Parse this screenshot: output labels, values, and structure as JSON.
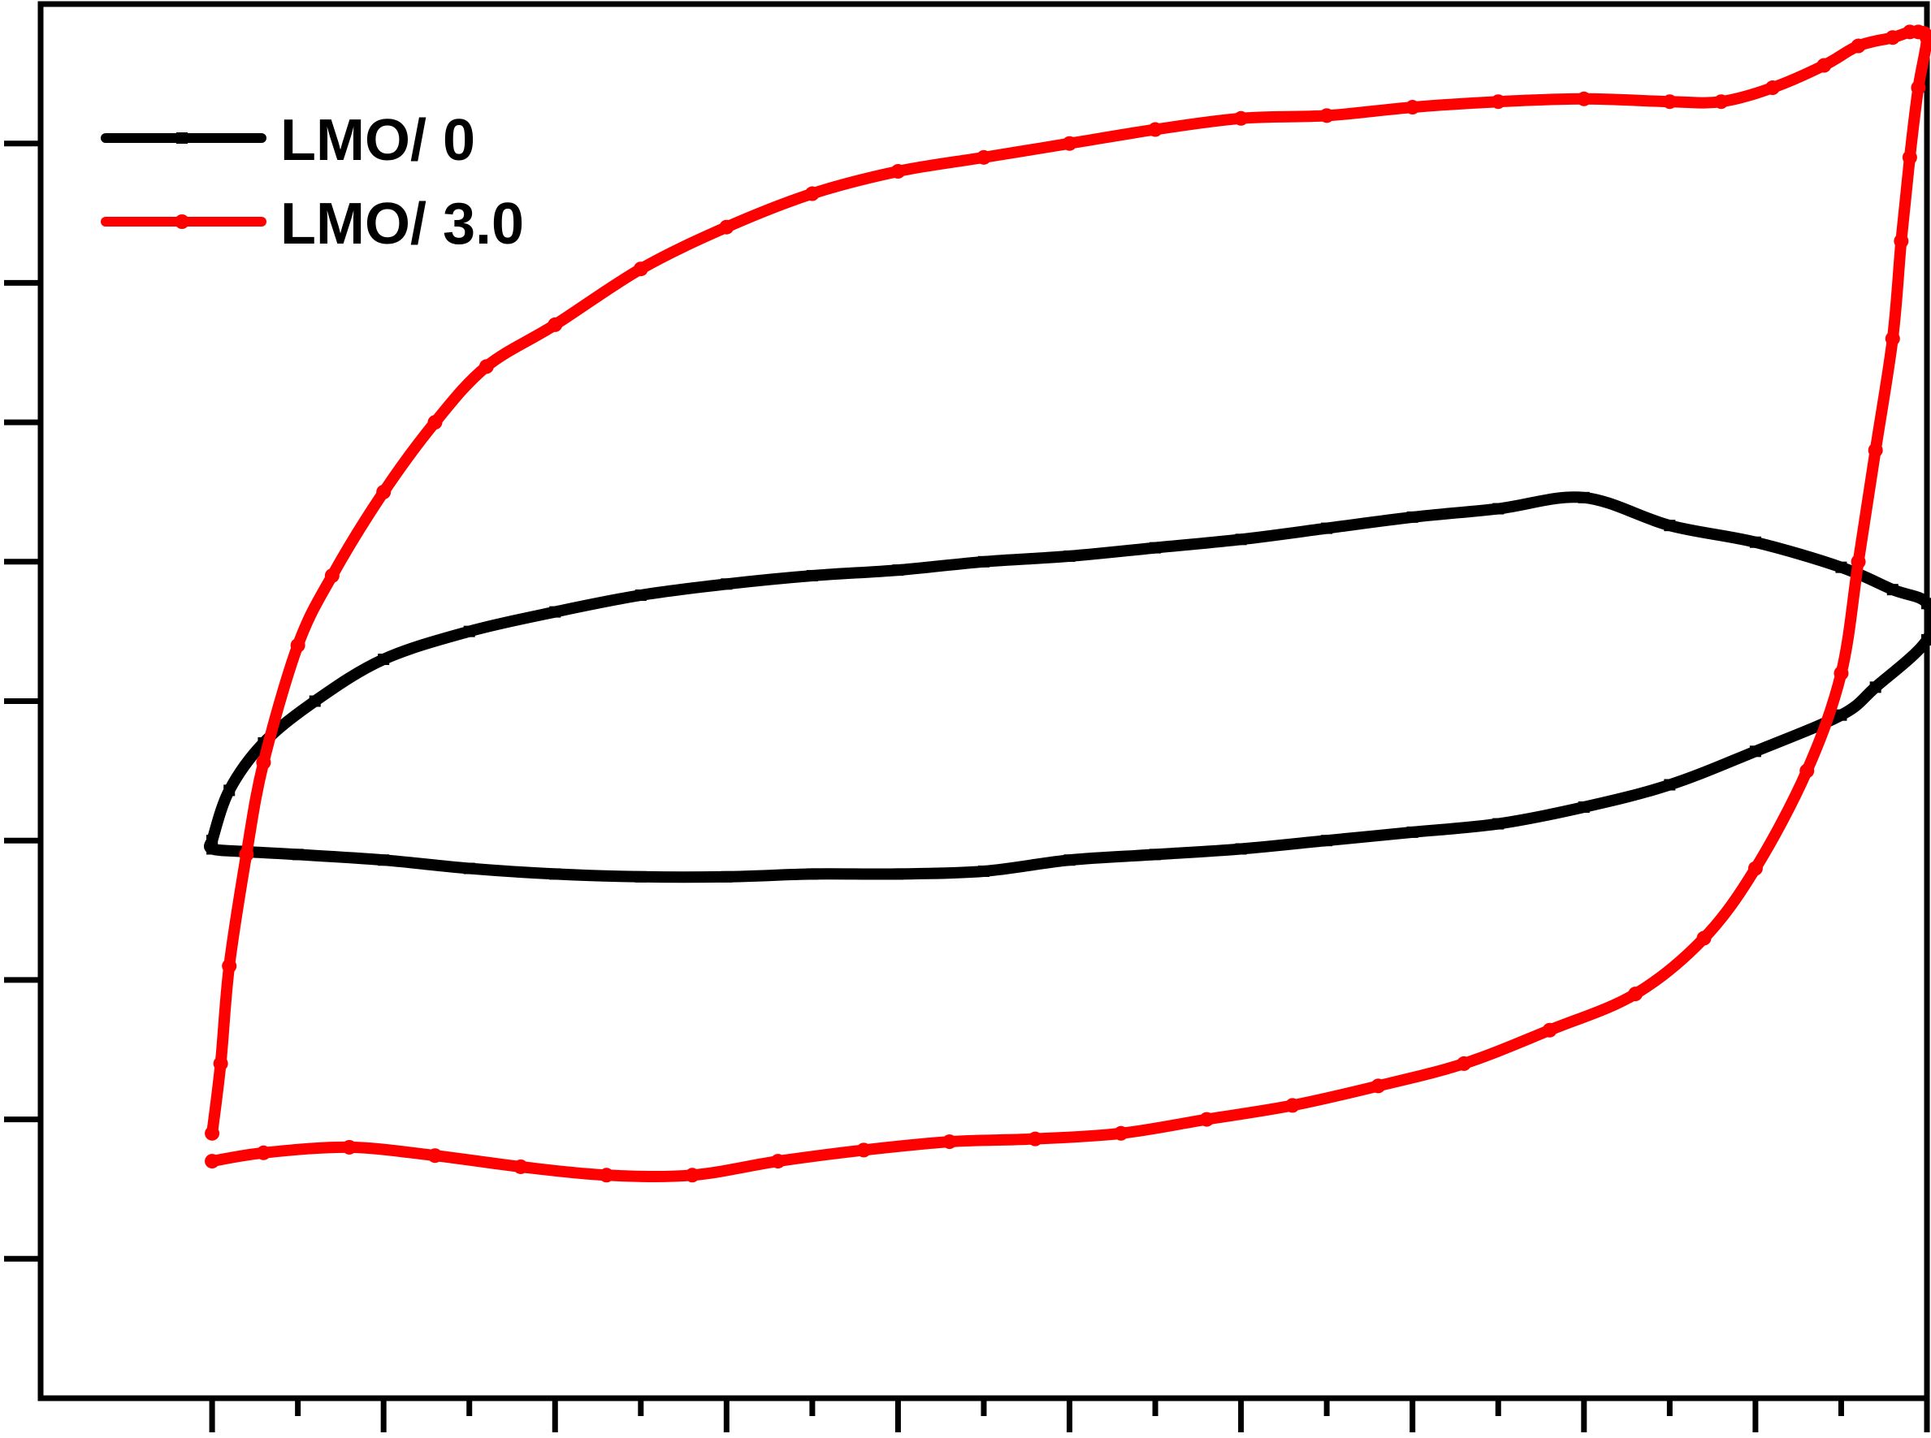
{
  "chart_data": {
    "type": "line",
    "title": "",
    "xlabel": "",
    "ylabel": "",
    "xlim": [
      -0.1,
      1.0
    ],
    "ylim": [
      -5.0,
      0.0
    ],
    "grid": false,
    "legend_position": "top-left",
    "x_ticks": [
      0.0,
      0.1,
      0.2,
      0.3,
      0.4,
      0.5,
      0.6,
      0.7,
      0.8,
      0.9,
      1.0
    ],
    "y_ticks": [
      -0.5,
      -1.0,
      -1.5,
      -2.0,
      -2.5,
      -3.0,
      -3.5,
      -4.0,
      -4.5
    ],
    "series": [
      {
        "name": "LMO/ 0",
        "color": "#000000",
        "marker": "square",
        "x": [
          0.0,
          0.01,
          0.03,
          0.06,
          0.1,
          0.15,
          0.2,
          0.25,
          0.3,
          0.35,
          0.4,
          0.45,
          0.5,
          0.55,
          0.6,
          0.65,
          0.7,
          0.75,
          0.8,
          0.85,
          0.9,
          0.95,
          0.98,
          1.0,
          1.0,
          0.97,
          0.95,
          0.9,
          0.85,
          0.8,
          0.75,
          0.7,
          0.65,
          0.6,
          0.55,
          0.5,
          0.45,
          0.4,
          0.35,
          0.3,
          0.25,
          0.2,
          0.15,
          0.1,
          0.05,
          0.02,
          0.0,
          0.0
        ],
        "y": [
          -3.0,
          -2.82,
          -2.65,
          -2.5,
          -2.35,
          -2.25,
          -2.18,
          -2.12,
          -2.08,
          -2.05,
          -2.03,
          -2.0,
          -1.98,
          -1.95,
          -1.92,
          -1.88,
          -1.84,
          -1.81,
          -1.77,
          -1.87,
          -1.93,
          -2.02,
          -2.1,
          -2.15,
          -2.28,
          -2.45,
          -2.55,
          -2.68,
          -2.8,
          -2.88,
          -2.94,
          -2.97,
          -3.0,
          -3.03,
          -3.05,
          -3.07,
          -3.11,
          -3.12,
          -3.12,
          -3.13,
          -3.13,
          -3.12,
          -3.1,
          -3.07,
          -3.05,
          -3.04,
          -3.03,
          -3.0
        ]
      },
      {
        "name": "LMO/ 3.0",
        "color": "#ff0000",
        "marker": "circle",
        "x": [
          0.0,
          0.005,
          0.01,
          0.02,
          0.03,
          0.05,
          0.07,
          0.1,
          0.13,
          0.16,
          0.2,
          0.25,
          0.3,
          0.35,
          0.4,
          0.45,
          0.5,
          0.55,
          0.6,
          0.65,
          0.7,
          0.75,
          0.8,
          0.85,
          0.88,
          0.91,
          0.94,
          0.96,
          0.98,
          0.99,
          0.995,
          1.0,
          0.995,
          0.99,
          0.985,
          0.98,
          0.97,
          0.96,
          0.95,
          0.93,
          0.9,
          0.87,
          0.83,
          0.78,
          0.73,
          0.68,
          0.63,
          0.58,
          0.53,
          0.48,
          0.43,
          0.38,
          0.33,
          0.28,
          0.23,
          0.18,
          0.13,
          0.08,
          0.03,
          0.0
        ],
        "y": [
          -4.05,
          -3.8,
          -3.45,
          -3.05,
          -2.72,
          -2.3,
          -2.05,
          -1.75,
          -1.5,
          -1.3,
          -1.15,
          -0.95,
          -0.8,
          -0.68,
          -0.6,
          -0.55,
          -0.5,
          -0.45,
          -0.41,
          -0.4,
          -0.37,
          -0.35,
          -0.34,
          -0.35,
          -0.35,
          -0.3,
          -0.22,
          -0.15,
          -0.12,
          -0.1,
          -0.1,
          -0.12,
          -0.3,
          -0.55,
          -0.85,
          -1.2,
          -1.6,
          -2.0,
          -2.4,
          -2.75,
          -3.1,
          -3.35,
          -3.55,
          -3.68,
          -3.8,
          -3.88,
          -3.95,
          -4.0,
          -4.05,
          -4.07,
          -4.08,
          -4.11,
          -4.15,
          -4.2,
          -4.2,
          -4.17,
          -4.13,
          -4.1,
          -4.12,
          -4.15
        ]
      }
    ]
  }
}
